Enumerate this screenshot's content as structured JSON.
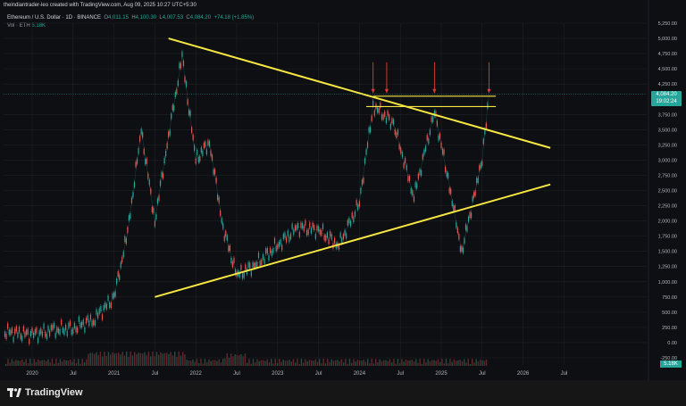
{
  "header": {
    "attribution": "theindiantrader-leo created with TradingView.com, Aug 09, 2025 10:27 UTC+5:30",
    "symbol": "Ethereum / U.S. Dollar · 1D · BINANCE",
    "o_label": "O",
    "o_val": "4,011.15",
    "h_label": "H",
    "h_val": "4,100.30",
    "l_label": "L",
    "l_val": "4,007.53",
    "c_label": "C",
    "c_val": "4,084.20",
    "change": "+74.18 (+1.85%)",
    "vol_label": "Vol · ETH",
    "vol_val": "5.18K"
  },
  "price_tag": {
    "price": "4,084.20",
    "countdown": "19:02:24"
  },
  "volume_tag": "5.18K",
  "brand": "TradingView",
  "colors": {
    "up": "#26a69a",
    "down": "#ef5350",
    "trend": "#f5e642",
    "arrow": "#e53935",
    "bg": "#0e0f12"
  },
  "chart_data": {
    "type": "line",
    "title": "Ethereum / U.S. Dollar · 1D · BINANCE",
    "xlabel": "",
    "ylabel": "",
    "ylim": [
      -250,
      5250
    ],
    "y_ticks": [
      "5,250.00",
      "5,000.00",
      "4,750.00",
      "4,500.00",
      "4,250.00",
      "3,750.00",
      "3,500.00",
      "3,250.00",
      "3,000.00",
      "2,750.00",
      "2,500.00",
      "2,250.00",
      "2,000.00",
      "1,750.00",
      "1,500.00",
      "1,250.00",
      "1,000.00",
      "750.00",
      "500.00",
      "250.00",
      "0.00",
      "-250.00"
    ],
    "x_ticks": [
      "2020",
      "Jul",
      "2021",
      "Jul",
      "2022",
      "Jul",
      "2023",
      "Jul",
      "2024",
      "Jul",
      "2025",
      "Jul",
      "2026",
      "Jul"
    ],
    "series": [
      {
        "x": [
          "2019-09",
          "2020-01",
          "2020-04",
          "2020-07",
          "2020-10",
          "2021-01",
          "2021-03",
          "2021-05",
          "2021-07",
          "2021-09",
          "2021-11",
          "2022-01",
          "2022-03",
          "2022-05",
          "2022-07",
          "2022-10",
          "2023-01",
          "2023-04",
          "2023-07",
          "2023-10",
          "2024-01",
          "2024-03",
          "2024-06",
          "2024-09",
          "2024-12",
          "2025-02",
          "2025-04",
          "2025-06",
          "2025-07",
          "2025-08"
        ],
        "values": [
          180,
          130,
          200,
          240,
          380,
          740,
          1800,
          3500,
          2000,
          3400,
          4700,
          3000,
          3300,
          1900,
          1100,
          1300,
          1600,
          1900,
          1850,
          1600,
          2300,
          3900,
          3600,
          2400,
          3800,
          2700,
          1500,
          2500,
          3000,
          4084
        ]
      }
    ],
    "trendlines": [
      {
        "start": [
          "2021-09",
          5000
        ],
        "end": [
          "2026-05",
          3200
        ]
      },
      {
        "start": [
          "2021-07",
          750
        ],
        "end": [
          "2026-05",
          2600
        ]
      },
      {
        "start": [
          "2024-03",
          4050
        ],
        "end": [
          "2025-09",
          4050
        ]
      },
      {
        "start": [
          "2024-02",
          3880
        ],
        "end": [
          "2025-09",
          3880
        ]
      }
    ],
    "arrows_at": [
      "2024-03",
      "2024-05",
      "2024-12",
      "2025-08"
    ],
    "grid": true,
    "legend": "top-left"
  }
}
